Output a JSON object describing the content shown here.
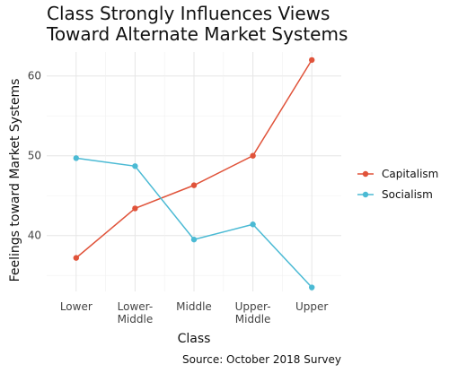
{
  "chart_data": {
    "type": "line",
    "title": "Class Strongly Influences Views\nToward Alternate Market Systems",
    "xlabel": "Class",
    "ylabel": "Feelings toward Market Systems",
    "caption": "Source: October 2018 Survey",
    "categories": [
      "Lower",
      "Lower-\nMiddle",
      "Middle",
      "Upper-\nMiddle",
      "Upper"
    ],
    "ylim": [
      33,
      63
    ],
    "yticks": [
      40,
      50,
      60
    ],
    "grid": true,
    "legend_position": "right",
    "series": [
      {
        "name": "Capitalism",
        "color": "#e0533a",
        "values": [
          37.2,
          43.4,
          46.3,
          50.0,
          62.0
        ]
      },
      {
        "name": "Socialism",
        "color": "#4bbad4",
        "values": [
          49.7,
          48.7,
          39.5,
          41.4,
          33.5
        ]
      }
    ]
  }
}
